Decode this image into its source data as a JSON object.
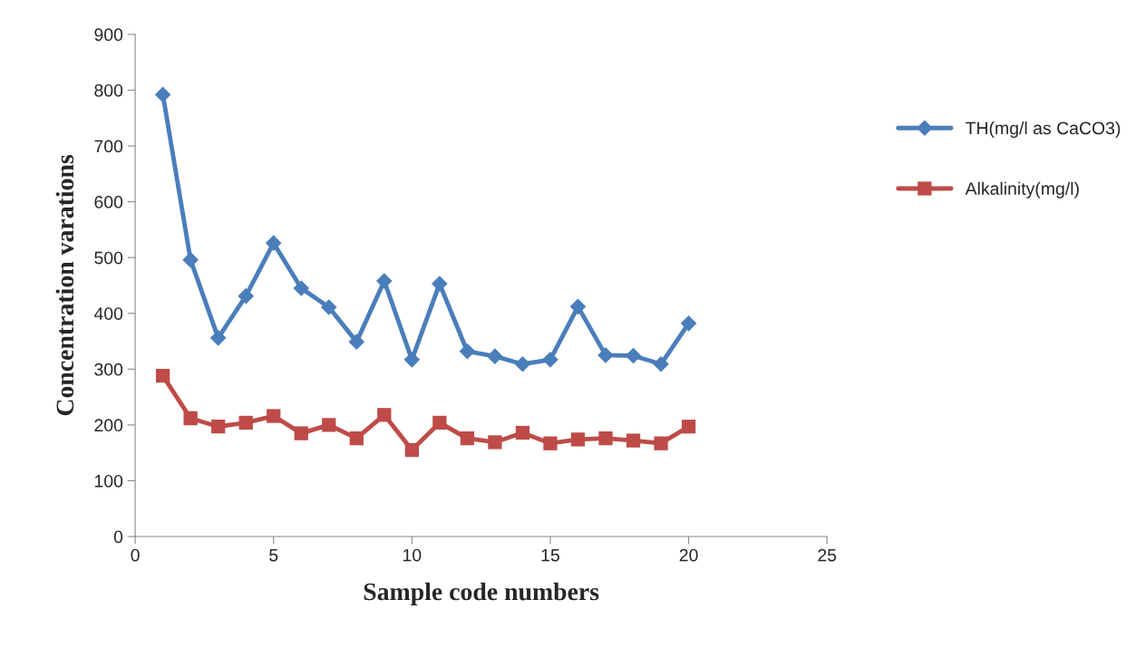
{
  "chart_data": {
    "type": "line",
    "xlabel": "Sample code numbers",
    "ylabel": "Concentration varations",
    "x": [
      1,
      2,
      3,
      4,
      5,
      6,
      7,
      8,
      9,
      10,
      11,
      12,
      13,
      14,
      15,
      16,
      17,
      18,
      19,
      20
    ],
    "series": [
      {
        "name": "TH(mg/l as CaCO3)",
        "color": "#4a7ebb",
        "marker": "diamond",
        "values": [
          792,
          496,
          356,
          431,
          526,
          445,
          411,
          349,
          458,
          317,
          453,
          332,
          323,
          309,
          317,
          412,
          325,
          324,
          309,
          382
        ]
      },
      {
        "name": "Alkalinity(mg/l)",
        "color": "#be4b48",
        "marker": "square",
        "values": [
          288,
          212,
          197,
          204,
          216,
          185,
          200,
          176,
          218,
          155,
          204,
          176,
          169,
          186,
          167,
          174,
          176,
          172,
          167,
          197
        ]
      }
    ],
    "xlim": [
      0,
      25
    ],
    "xticks": [
      0,
      5,
      10,
      15,
      20,
      25
    ],
    "ylim": [
      0,
      900
    ],
    "yticks": [
      0,
      100,
      200,
      300,
      400,
      500,
      600,
      700,
      800,
      900
    ],
    "grid": false,
    "legend": "right",
    "line_style": "solid"
  }
}
